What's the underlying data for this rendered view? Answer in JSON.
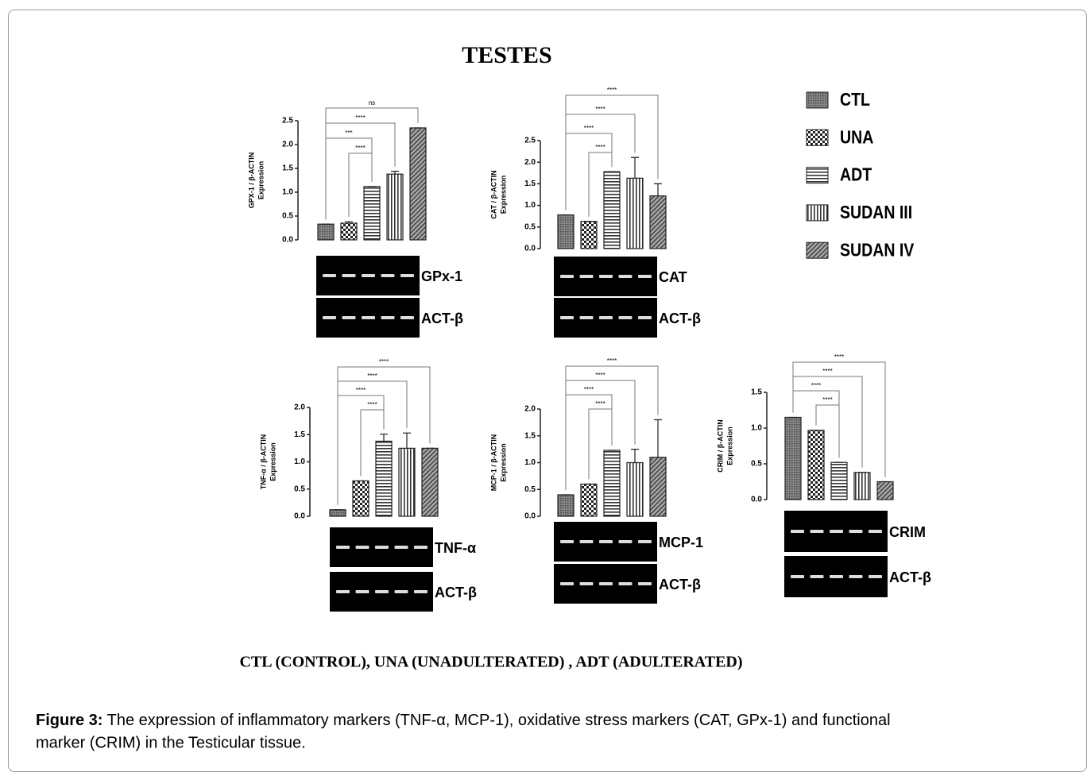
{
  "title": "TESTES",
  "legend": [
    "CTL",
    "UNA",
    "ADT",
    "SUDAN III",
    "SUDAN IV"
  ],
  "footnote": "CTL (CONTROL), UNA (UNADULTERATED)  , ADT (ADULTERATED)",
  "caption": {
    "label": "Figure 3:",
    "text": "The expression of inflammatory markers (TNF-α, MCP-1), oxidative stress markers (CAT, GPx-1) and functional",
    "text2": "marker (CRIM) in the Testicular tissue."
  },
  "chart_data": [
    {
      "type": "bar",
      "ylabel": "GPX-1 / β-ACTIN",
      "ylabel2": "Expression",
      "values": [
        0.33,
        0.35,
        1.12,
        1.38,
        2.35
      ],
      "errors": [
        0,
        0.03,
        0,
        0.06,
        0
      ],
      "ylim": [
        0,
        2.5
      ],
      "yticks": [
        {
          "value": 0,
          "label": "0.0"
        },
        0.5,
        {
          "value": 1,
          "label": "1.0"
        },
        1.5,
        {
          "value": 2,
          "label": "2.0"
        },
        2.5
      ],
      "significance": [
        "****",
        "***",
        "****",
        "ns"
      ],
      "gel_labels": [
        "GPx-1",
        "ACT-β"
      ]
    },
    {
      "type": "bar",
      "ylabel": "CAT / β-ACTIN",
      "ylabel2": "Expression",
      "values": [
        0.78,
        0.63,
        1.78,
        1.63,
        1.22
      ],
      "errors": [
        0,
        0,
        0,
        0.48,
        0.28
      ],
      "ylim": [
        0,
        2.5
      ],
      "yticks": [
        {
          "value": 0,
          "label": "0.0"
        },
        0.5,
        {
          "value": 1,
          "label": "1.0"
        },
        1.5,
        {
          "value": 2,
          "label": "2.0"
        },
        2.5
      ],
      "significance": [
        "****",
        "****",
        "****",
        "****"
      ],
      "gel_labels": [
        "CAT",
        "ACT-β"
      ]
    },
    {
      "type": "bar",
      "ylabel": "TNF-α / β-ACTIN",
      "ylabel2": "Expression",
      "values": [
        0.12,
        0.65,
        1.38,
        1.25,
        1.25
      ],
      "errors": [
        0,
        0,
        0.13,
        0.28,
        0
      ],
      "ylim": [
        0,
        2
      ],
      "yticks": [
        {
          "value": 0,
          "label": "0.0"
        },
        0.5,
        {
          "value": 1,
          "label": "1.0"
        },
        1.5,
        {
          "value": 2,
          "label": "2.0"
        }
      ],
      "significance": [
        "****",
        "****",
        "****",
        "****"
      ],
      "gel_labels": [
        "TNF-α",
        "ACT-β"
      ]
    },
    {
      "type": "bar",
      "ylabel": "MCP-1 / β-ACTIN",
      "ylabel2": "Expression",
      "values": [
        0.4,
        0.6,
        1.23,
        1.0,
        1.1
      ],
      "errors": [
        0,
        0,
        0,
        0.25,
        0.7
      ],
      "ylim": [
        0,
        2
      ],
      "yticks": [
        {
          "value": 0,
          "label": "0.0"
        },
        0.5,
        {
          "value": 1,
          "label": "1.0"
        },
        1.5,
        {
          "value": 2,
          "label": "2.0"
        }
      ],
      "significance": [
        "****",
        "****",
        "****",
        "****"
      ],
      "gel_labels": [
        "MCP-1",
        "ACT-β"
      ]
    },
    {
      "type": "bar",
      "ylabel": "CRIM / β-ACTIN",
      "ylabel2": "Expression",
      "values": [
        1.15,
        0.97,
        0.52,
        0.38,
        0.25
      ],
      "errors": [
        0,
        0,
        0,
        0,
        0
      ],
      "ylim": [
        0,
        1.5
      ],
      "yticks": [
        {
          "value": 0,
          "label": "0.0"
        },
        0.5,
        {
          "value": 1,
          "label": "1.0"
        },
        1.5
      ],
      "significance": [
        "****",
        "****",
        "****",
        "****"
      ],
      "gel_labels": [
        "CRIM",
        "ACT-β"
      ]
    }
  ]
}
